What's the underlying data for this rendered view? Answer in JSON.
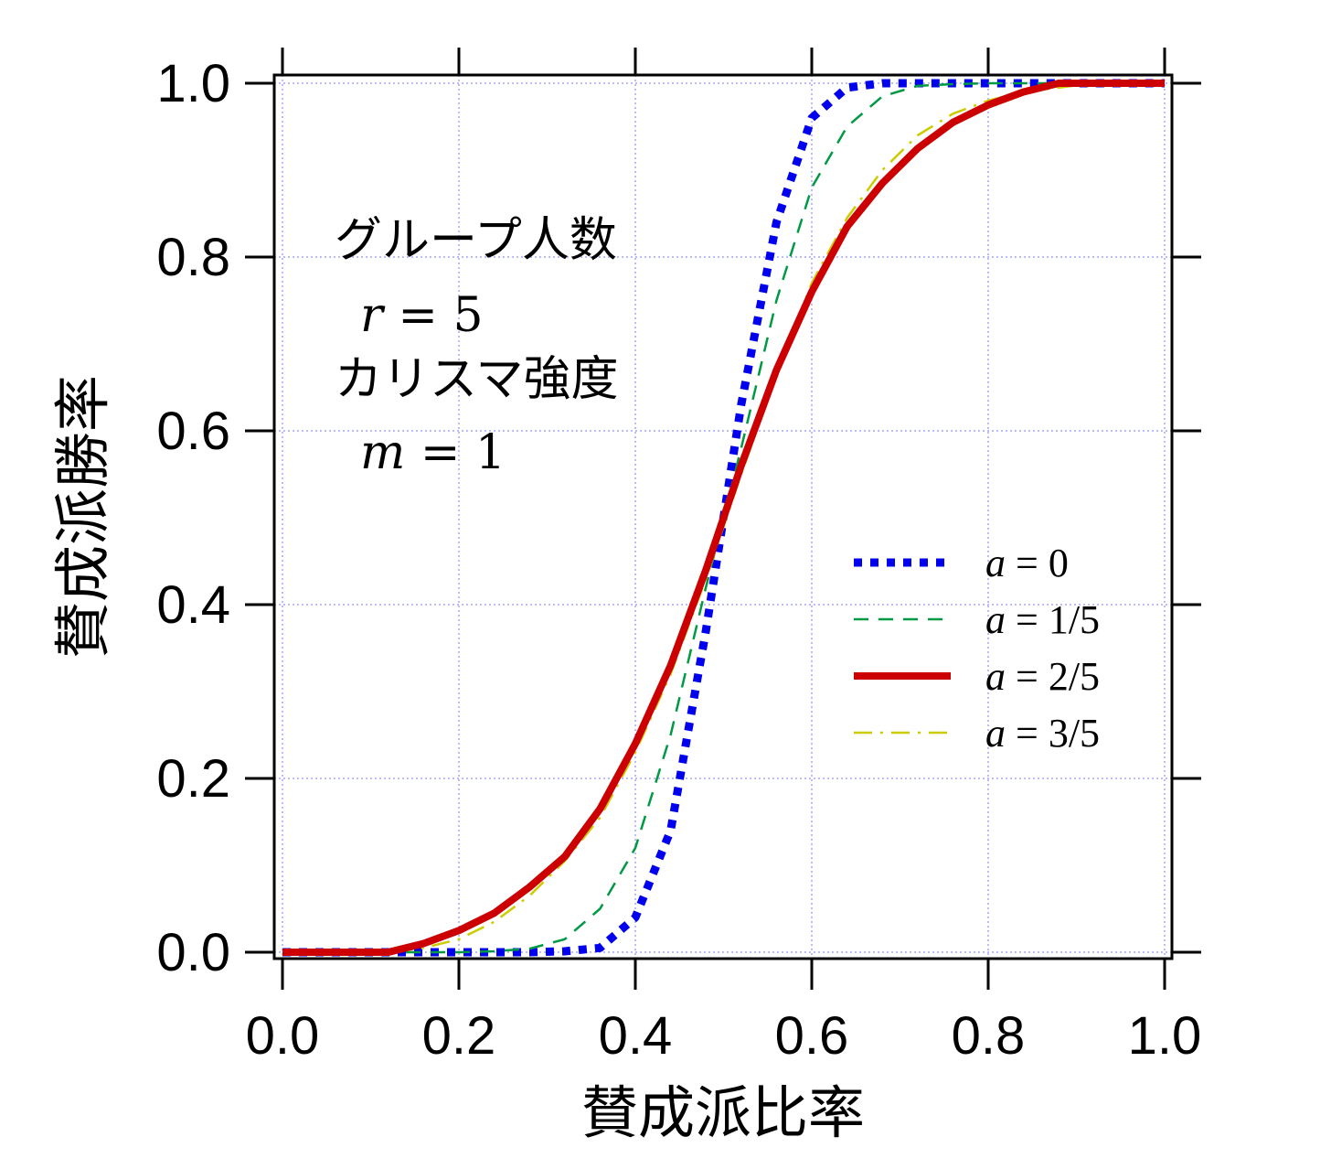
{
  "chart_data": {
    "type": "line",
    "xlabel": "賛成派比率",
    "ylabel": "賛成派勝率",
    "xlim": [
      0,
      1
    ],
    "ylim": [
      0,
      1
    ],
    "x_ticks": [
      "0.0",
      "0.2",
      "0.4",
      "0.6",
      "0.8",
      "1.0"
    ],
    "y_ticks": [
      "0.0",
      "0.2",
      "0.4",
      "0.6",
      "0.8",
      "1.0"
    ],
    "grid": true,
    "legend_position": "bottom-right",
    "annotations": [
      {
        "id": "group-label",
        "text": "グループ人数"
      },
      {
        "id": "r-var",
        "text": "r",
        "italic": true
      },
      {
        "id": "r-eq",
        "text": " = 5"
      },
      {
        "id": "charisma-label",
        "text": "カリスマ強度"
      },
      {
        "id": "m-var",
        "text": "m",
        "italic": true
      },
      {
        "id": "m-eq",
        "text": " = 1"
      }
    ],
    "x": [
      0.0,
      0.04,
      0.08,
      0.12,
      0.16,
      0.2,
      0.24,
      0.28,
      0.32,
      0.36,
      0.4,
      0.44,
      0.48,
      0.52,
      0.56,
      0.6,
      0.64,
      0.68,
      0.72,
      0.76,
      0.8,
      0.84,
      0.88,
      0.92,
      0.96,
      1.0
    ],
    "series": [
      {
        "name": "a = 0",
        "var": "a",
        "eq": " = 0",
        "color": "#0000ee",
        "style": "dotted",
        "values": [
          0,
          0,
          0,
          0,
          0,
          0,
          0,
          0,
          0.001,
          0.005,
          0.04,
          0.14,
          0.37,
          0.63,
          0.84,
          0.96,
          0.995,
          1,
          1,
          1,
          1,
          1,
          1,
          1,
          1,
          1
        ]
      },
      {
        "name": "a = 1/5",
        "var": "a",
        "eq": " = 1/5",
        "color": "#009944",
        "style": "dashed",
        "values": [
          0,
          0,
          0,
          0,
          0,
          0,
          0.001,
          0.004,
          0.015,
          0.05,
          0.12,
          0.25,
          0.42,
          0.58,
          0.75,
          0.88,
          0.95,
          0.985,
          0.997,
          0.999,
          1,
          1,
          1,
          1,
          1,
          1
        ]
      },
      {
        "name": "a = 2/5",
        "var": "a",
        "eq": " = 2/5",
        "color": "#cc0000",
        "style": "solid",
        "values": [
          0,
          0,
          0,
          0,
          0.01,
          0.025,
          0.045,
          0.075,
          0.11,
          0.165,
          0.24,
          0.33,
          0.44,
          0.56,
          0.67,
          0.76,
          0.835,
          0.885,
          0.925,
          0.955,
          0.975,
          0.99,
          1,
          1,
          1,
          1
        ]
      },
      {
        "name": "a = 3/5",
        "var": "a",
        "eq": " = 3/5",
        "color": "#cccc00",
        "style": "dashdot",
        "values": [
          0,
          0,
          0,
          0,
          0.005,
          0.015,
          0.035,
          0.065,
          0.105,
          0.155,
          0.23,
          0.32,
          0.43,
          0.55,
          0.665,
          0.77,
          0.845,
          0.9,
          0.94,
          0.965,
          0.98,
          0.99,
          0.995,
          1,
          1,
          1
        ]
      }
    ]
  }
}
